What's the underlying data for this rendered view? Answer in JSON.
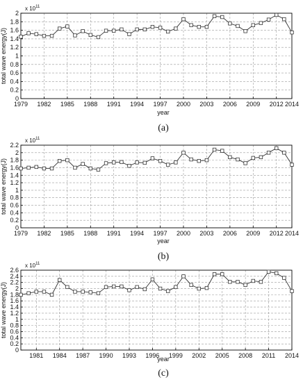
{
  "colors": {
    "line": "#333333",
    "grid": "#9a9a9a",
    "axis": "#000000",
    "background": "#ffffff"
  },
  "chart_data": [
    {
      "type": "line",
      "caption": "(a)",
      "xlabel": "year",
      "ylabel": "total wave energy(J)",
      "y_exponent_label": "x 10",
      "y_exponent_power": "11",
      "xlim": [
        1979,
        2014
      ],
      "ylim": [
        0,
        2
      ],
      "x_ticks": [
        1979,
        1982,
        1985,
        1988,
        1991,
        1994,
        1997,
        2000,
        2003,
        2006,
        2009,
        2012,
        2014
      ],
      "x_tick_labels": [
        "1979",
        "1982",
        "1985",
        "1988",
        "1991",
        "1994",
        "1997",
        "2000",
        "2003",
        "2006",
        "2009",
        "2012",
        "2014"
      ],
      "y_ticks": [
        0,
        0.2,
        0.4,
        0.6,
        0.8,
        1,
        1.2,
        1.4,
        1.6,
        1.8,
        2
      ],
      "y_tick_labels": [
        "0",
        "0.2",
        "0.4",
        "0.6",
        "0.8",
        "1",
        "1.2",
        "1.4",
        "1.6",
        "1.8",
        "2"
      ],
      "grid": true,
      "marker": "square",
      "series": [
        {
          "x": [
            1979,
            1980,
            1981,
            1982,
            1983,
            1984,
            1985,
            1986,
            1987,
            1988,
            1989,
            1990,
            1991,
            1992,
            1993,
            1994,
            1995,
            1996,
            1997,
            1998,
            1999,
            2000,
            2001,
            2002,
            2003,
            2004,
            2005,
            2006,
            2007,
            2008,
            2009,
            2010,
            2011,
            2012,
            2013,
            2014
          ],
          "y": [
            1.45,
            1.53,
            1.51,
            1.47,
            1.47,
            1.64,
            1.69,
            1.48,
            1.58,
            1.49,
            1.44,
            1.59,
            1.59,
            1.62,
            1.51,
            1.62,
            1.62,
            1.68,
            1.66,
            1.57,
            1.64,
            1.86,
            1.72,
            1.68,
            1.68,
            1.93,
            1.91,
            1.76,
            1.7,
            1.58,
            1.72,
            1.77,
            1.85,
            1.96,
            1.86,
            1.55
          ]
        }
      ]
    },
    {
      "type": "line",
      "caption": "(b)",
      "xlabel": "year",
      "ylabel": "total wave energy(J)",
      "y_exponent_label": "x 10",
      "y_exponent_power": "11",
      "xlim": [
        1979,
        2014
      ],
      "ylim": [
        0,
        2.2
      ],
      "x_ticks": [
        1979,
        1982,
        1985,
        1988,
        1991,
        1994,
        1997,
        2000,
        2003,
        2006,
        2009,
        2012,
        2014
      ],
      "x_tick_labels": [
        "1979",
        "1982",
        "1985",
        "1988",
        "1991",
        "1994",
        "1997",
        "2000",
        "2003",
        "2006",
        "2009",
        "2012",
        "2014"
      ],
      "y_ticks": [
        0,
        0.2,
        0.4,
        0.6,
        0.8,
        1,
        1.2,
        1.4,
        1.6,
        1.8,
        2,
        2.2
      ],
      "y_tick_labels": [
        "0",
        "0.2",
        "0.4",
        "0.6",
        "0.8",
        "1",
        "1.2",
        "1.4",
        "1.6",
        "1.8",
        "2",
        "2.2"
      ],
      "grid": true,
      "marker": "square",
      "series": [
        {
          "x": [
            1979,
            1980,
            1981,
            1982,
            1983,
            1984,
            1985,
            1986,
            1987,
            1988,
            1989,
            1990,
            1991,
            1992,
            1993,
            1994,
            1995,
            1996,
            1997,
            1998,
            1999,
            2000,
            2001,
            2002,
            2003,
            2004,
            2005,
            2006,
            2007,
            2008,
            2009,
            2010,
            2011,
            2012,
            2013,
            2014
          ],
          "y": [
            1.58,
            1.6,
            1.62,
            1.58,
            1.58,
            1.78,
            1.8,
            1.6,
            1.7,
            1.58,
            1.55,
            1.72,
            1.74,
            1.75,
            1.65,
            1.74,
            1.73,
            1.85,
            1.78,
            1.68,
            1.74,
            2.0,
            1.82,
            1.78,
            1.8,
            2.08,
            2.05,
            1.88,
            1.82,
            1.72,
            1.86,
            1.88,
            2.0,
            2.12,
            2.0,
            1.68
          ]
        }
      ]
    },
    {
      "type": "line",
      "caption": "(c)",
      "xlabel": "year",
      "ylabel": "total wave energy(J)",
      "y_exponent_label": "x 10",
      "y_exponent_power": "11",
      "xlim": [
        1979,
        2014
      ],
      "ylim": [
        0,
        2.6
      ],
      "x_ticks": [
        1981,
        1984,
        1987,
        1990,
        1993,
        1996,
        1999,
        2002,
        2005,
        2008,
        2011,
        2014
      ],
      "x_tick_labels": [
        "1981",
        "1984",
        "1987",
        "1990",
        "1993",
        "1996",
        "1999",
        "2002",
        "2005",
        "2008",
        "2011",
        "2014"
      ],
      "y_ticks": [
        0,
        0.2,
        0.4,
        0.6,
        0.8,
        1,
        1.2,
        1.4,
        1.6,
        1.8,
        2,
        2.2,
        2.4,
        2.6
      ],
      "y_tick_labels": [
        "0",
        "0.2",
        "0.4",
        "0.6",
        "0.8",
        "1",
        "1.2",
        "1.4",
        "1.6",
        "1.8",
        "2",
        "2.2",
        "2.4",
        "2.6"
      ],
      "grid": true,
      "marker": "square",
      "series": [
        {
          "x": [
            1979,
            1980,
            1981,
            1982,
            1983,
            1984,
            1985,
            1986,
            1987,
            1988,
            1989,
            1990,
            1991,
            1992,
            1993,
            1994,
            1995,
            1996,
            1997,
            1998,
            1999,
            2000,
            2001,
            2002,
            2003,
            2004,
            2005,
            2006,
            2007,
            2008,
            2009,
            2010,
            2011,
            2012,
            2013,
            2014
          ],
          "y": [
            1.8,
            1.85,
            1.9,
            1.9,
            1.8,
            2.28,
            2.05,
            1.9,
            1.9,
            1.88,
            1.85,
            2.05,
            2.07,
            2.07,
            1.95,
            2.05,
            1.98,
            2.3,
            2.0,
            1.92,
            2.05,
            2.4,
            2.12,
            2.0,
            2.02,
            2.47,
            2.47,
            2.22,
            2.22,
            2.12,
            2.25,
            2.22,
            2.55,
            2.5,
            2.35,
            1.92
          ]
        }
      ]
    }
  ]
}
